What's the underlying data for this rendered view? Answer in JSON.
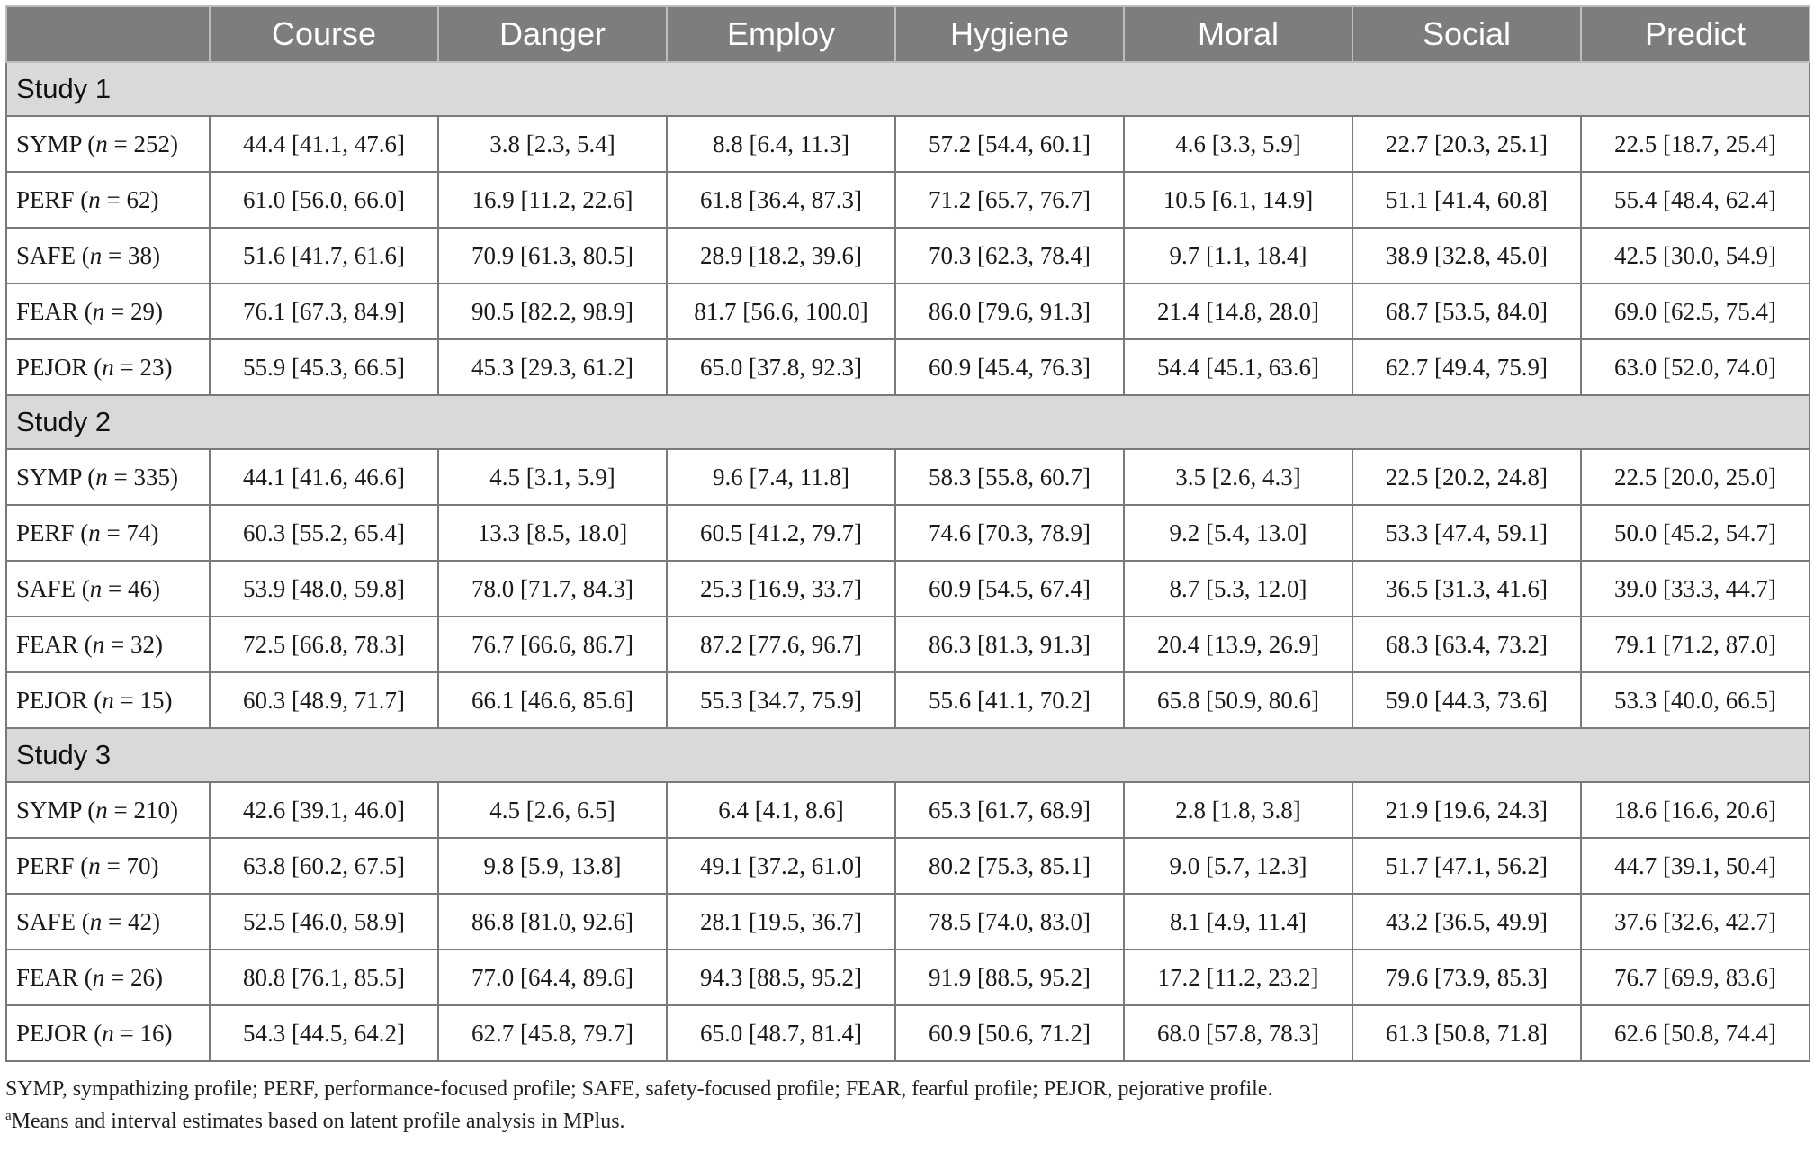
{
  "columns": [
    "",
    "Course",
    "Danger",
    "Employ",
    "Hygiene",
    "Moral",
    "Social",
    "Predict"
  ],
  "studies": [
    {
      "title": "Study 1",
      "rows": [
        {
          "profile": "SYMP",
          "n": "252",
          "cells": [
            "44.4 [41.1, 47.6]",
            "3.8 [2.3, 5.4]",
            "8.8 [6.4, 11.3]",
            "57.2 [54.4, 60.1]",
            "4.6 [3.3, 5.9]",
            "22.7 [20.3, 25.1]",
            "22.5 [18.7, 25.4]"
          ]
        },
        {
          "profile": "PERF",
          "n": "62",
          "cells": [
            "61.0 [56.0, 66.0]",
            "16.9 [11.2, 22.6]",
            "61.8 [36.4, 87.3]",
            "71.2 [65.7, 76.7]",
            "10.5 [6.1, 14.9]",
            "51.1 [41.4, 60.8]",
            "55.4 [48.4, 62.4]"
          ]
        },
        {
          "profile": "SAFE",
          "n": "38",
          "cells": [
            "51.6 [41.7, 61.6]",
            "70.9 [61.3, 80.5]",
            "28.9 [18.2, 39.6]",
            "70.3 [62.3, 78.4]",
            "9.7 [1.1, 18.4]",
            "38.9 [32.8, 45.0]",
            "42.5 [30.0, 54.9]"
          ]
        },
        {
          "profile": "FEAR",
          "n": "29",
          "cells": [
            "76.1 [67.3, 84.9]",
            "90.5 [82.2, 98.9]",
            "81.7 [56.6, 100.0]",
            "86.0 [79.6, 91.3]",
            "21.4 [14.8, 28.0]",
            "68.7 [53.5, 84.0]",
            "69.0 [62.5, 75.4]"
          ]
        },
        {
          "profile": "PEJOR",
          "n": "23",
          "cells": [
            "55.9 [45.3, 66.5]",
            "45.3 [29.3, 61.2]",
            "65.0 [37.8, 92.3]",
            "60.9 [45.4, 76.3]",
            "54.4 [45.1, 63.6]",
            "62.7 [49.4, 75.9]",
            "63.0 [52.0, 74.0]"
          ]
        }
      ]
    },
    {
      "title": "Study 2",
      "rows": [
        {
          "profile": "SYMP",
          "n": "335",
          "cells": [
            "44.1 [41.6, 46.6]",
            "4.5 [3.1, 5.9]",
            "9.6 [7.4, 11.8]",
            "58.3 [55.8, 60.7]",
            "3.5 [2.6, 4.3]",
            "22.5 [20.2, 24.8]",
            "22.5 [20.0, 25.0]"
          ]
        },
        {
          "profile": "PERF",
          "n": "74",
          "cells": [
            "60.3 [55.2, 65.4]",
            "13.3 [8.5, 18.0]",
            "60.5 [41.2, 79.7]",
            "74.6 [70.3, 78.9]",
            "9.2 [5.4, 13.0]",
            "53.3 [47.4, 59.1]",
            "50.0 [45.2, 54.7]"
          ]
        },
        {
          "profile": "SAFE",
          "n": "46",
          "cells": [
            "53.9 [48.0, 59.8]",
            "78.0 [71.7, 84.3]",
            "25.3 [16.9, 33.7]",
            "60.9 [54.5, 67.4]",
            "8.7 [5.3, 12.0]",
            "36.5 [31.3, 41.6]",
            "39.0 [33.3, 44.7]"
          ]
        },
        {
          "profile": "FEAR",
          "n": "32",
          "cells": [
            "72.5 [66.8, 78.3]",
            "76.7 [66.6, 86.7]",
            "87.2 [77.6, 96.7]",
            "86.3 [81.3, 91.3]",
            "20.4 [13.9, 26.9]",
            "68.3 [63.4, 73.2]",
            "79.1 [71.2, 87.0]"
          ]
        },
        {
          "profile": "PEJOR",
          "n": "15",
          "cells": [
            "60.3 [48.9, 71.7]",
            "66.1 [46.6, 85.6]",
            "55.3 [34.7, 75.9]",
            "55.6 [41.1, 70.2]",
            "65.8 [50.9, 80.6]",
            "59.0 [44.3, 73.6]",
            "53.3 [40.0, 66.5]"
          ]
        }
      ]
    },
    {
      "title": "Study 3",
      "rows": [
        {
          "profile": "SYMP",
          "n": "210",
          "cells": [
            "42.6 [39.1, 46.0]",
            "4.5 [2.6, 6.5]",
            "6.4 [4.1, 8.6]",
            "65.3 [61.7, 68.9]",
            "2.8 [1.8, 3.8]",
            "21.9 [19.6, 24.3]",
            "18.6 [16.6, 20.6]"
          ]
        },
        {
          "profile": "PERF",
          "n": "70",
          "cells": [
            "63.8 [60.2, 67.5]",
            "9.8 [5.9, 13.8]",
            "49.1 [37.2, 61.0]",
            "80.2 [75.3, 85.1]",
            "9.0 [5.7, 12.3]",
            "51.7 [47.1, 56.2]",
            "44.7 [39.1, 50.4]"
          ]
        },
        {
          "profile": "SAFE",
          "n": "42",
          "cells": [
            "52.5 [46.0, 58.9]",
            "86.8 [81.0, 92.6]",
            "28.1 [19.5, 36.7]",
            "78.5 [74.0, 83.0]",
            "8.1 [4.9, 11.4]",
            "43.2 [36.5, 49.9]",
            "37.6 [32.6, 42.7]"
          ]
        },
        {
          "profile": "FEAR",
          "n": "26",
          "cells": [
            "80.8 [76.1, 85.5]",
            "77.0 [64.4, 89.6]",
            "94.3 [88.5, 95.2]",
            "91.9 [88.5, 95.2]",
            "17.2 [11.2, 23.2]",
            "79.6 [73.9, 85.3]",
            "76.7 [69.9, 83.6]"
          ]
        },
        {
          "profile": "PEJOR",
          "n": "16",
          "cells": [
            "54.3 [44.5, 64.2]",
            "62.7 [45.8, 79.7]",
            "65.0 [48.7, 81.4]",
            "60.9 [50.6, 71.2]",
            "68.0 [57.8, 78.3]",
            "61.3 [50.8, 71.8]",
            "62.6 [50.8, 74.4]"
          ]
        }
      ]
    }
  ],
  "footnotes": {
    "abbreviations": "SYMP, sympathizing profile; PERF, performance-focused profile; SAFE, safety-focused profile; FEAR, fearful profile; PEJOR, pejorative profile.",
    "marker": "a",
    "note": "Means and interval estimates based on latent profile analysis in MPlus."
  },
  "colors": {
    "header_bg": "#7d7d7d",
    "header_text": "#ffffff",
    "study_bg": "#d9d9d9",
    "border": "#7a7a7a"
  }
}
